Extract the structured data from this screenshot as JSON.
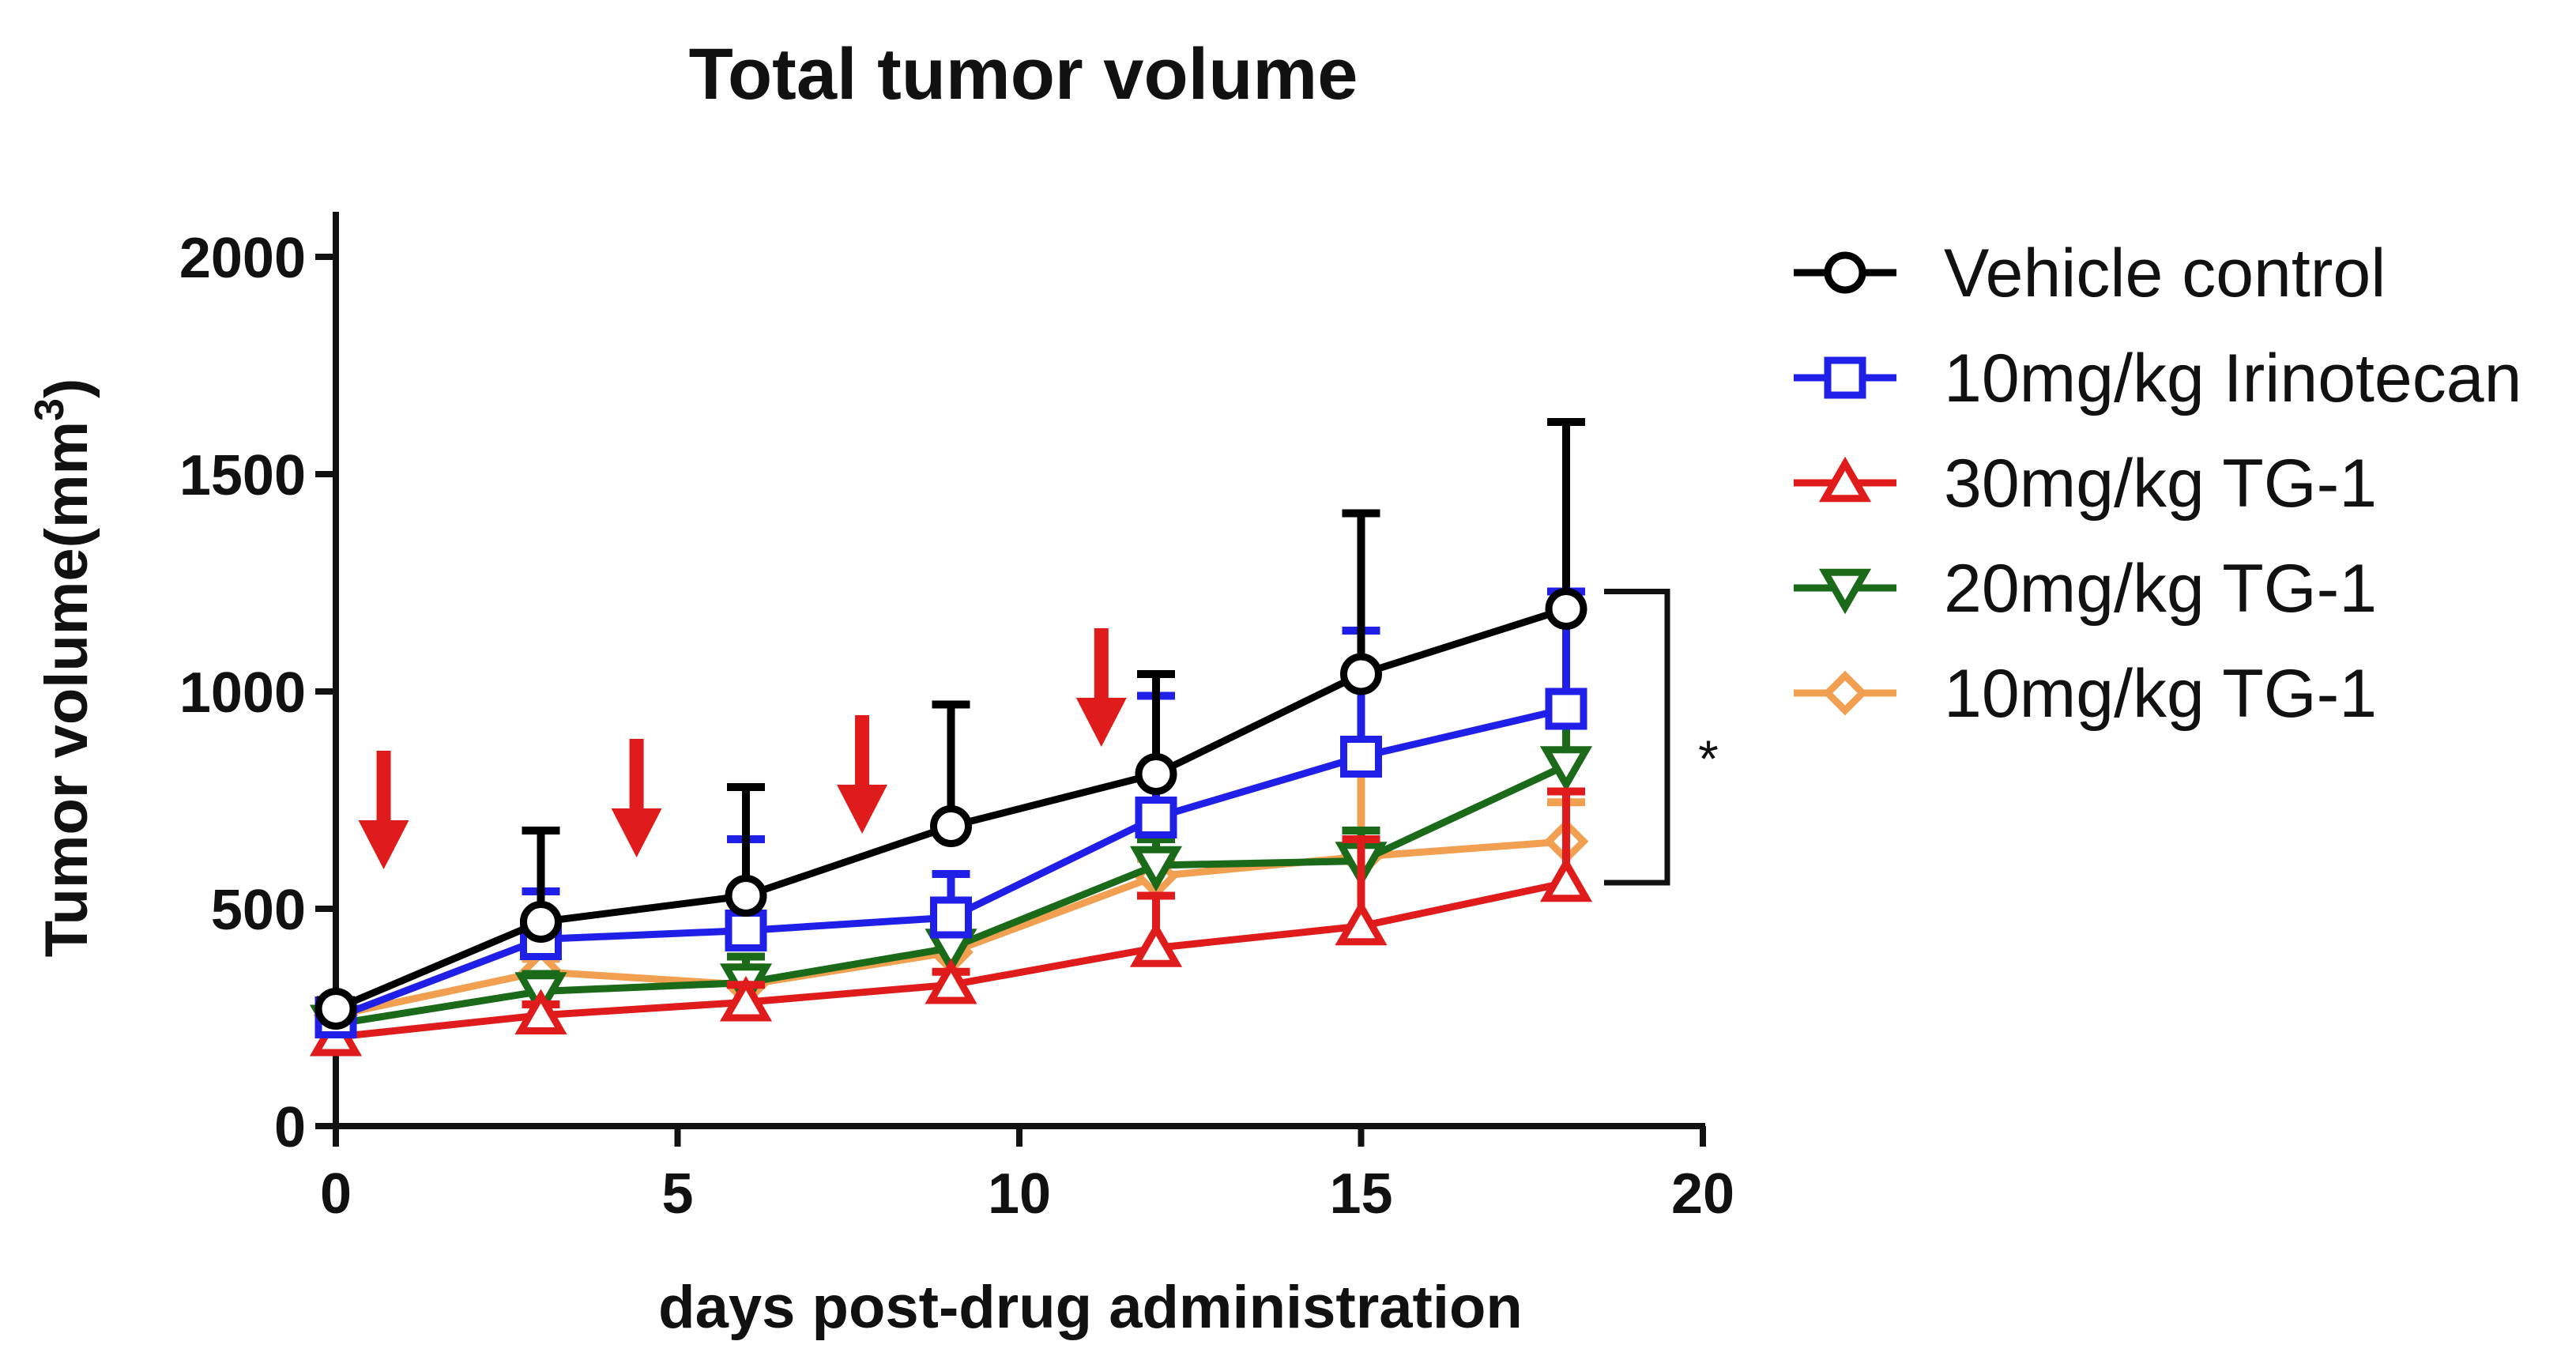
{
  "chart_data": {
    "type": "line",
    "title": "Total tumor volume",
    "xlabel": "days post-drug administration",
    "ylabel": "Tumor volume(mm",
    "ylabel_superscript": "3",
    "ylabel_suffix": ")",
    "xlim": [
      0,
      20
    ],
    "ylim": [
      0,
      2000
    ],
    "xticks": [
      0,
      5,
      10,
      15,
      20
    ],
    "yticks": [
      0,
      500,
      1000,
      1500,
      2000
    ],
    "grid": false,
    "legend_position": "right",
    "x": [
      0,
      3,
      6,
      9,
      12,
      15,
      18
    ],
    "series": [
      {
        "name": "Vehicle control",
        "color": "#000000",
        "marker": "circle",
        "values": [
          270,
          470,
          530,
          690,
          810,
          1040,
          1190
        ],
        "errors": [
          20,
          210,
          250,
          280,
          230,
          370,
          430
        ]
      },
      {
        "name": "10mg/kg Irinotecan",
        "color": "#1f1fe8",
        "marker": "square",
        "values": [
          250,
          430,
          450,
          480,
          710,
          850,
          960
        ],
        "errors": [
          20,
          110,
          210,
          100,
          280,
          290,
          270
        ]
      },
      {
        "name": "30mg/kg TG-1",
        "color": "#e01b1b",
        "marker": "triangle-up",
        "values": [
          205,
          255,
          285,
          325,
          410,
          460,
          560
        ],
        "errors": [
          20,
          25,
          40,
          30,
          120,
          200,
          210
        ]
      },
      {
        "name": "20mg/kg TG-1",
        "color": "#1a6a1a",
        "marker": "triangle-down",
        "values": [
          235,
          310,
          330,
          410,
          600,
          610,
          830
        ],
        "errors": [
          15,
          40,
          60,
          40,
          60,
          70,
          110
        ]
      },
      {
        "name": "10mg/kg TG-1",
        "color": "#f0a050",
        "marker": "diamond",
        "values": [
          255,
          355,
          325,
          400,
          575,
          620,
          655
        ],
        "errors": [
          15,
          30,
          40,
          40,
          40,
          220,
          90
        ]
      }
    ],
    "dosing_arrows_days": [
      0.7,
      4.4,
      7.7,
      11.2
    ],
    "dosing_arrow_color": "#e01b1b",
    "significance_bracket": {
      "from": 560,
      "to": 1230,
      "label": "*"
    }
  }
}
